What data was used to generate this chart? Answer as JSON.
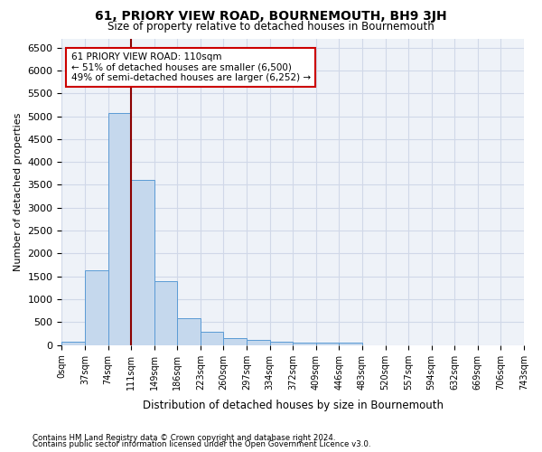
{
  "title": "61, PRIORY VIEW ROAD, BOURNEMOUTH, BH9 3JH",
  "subtitle": "Size of property relative to detached houses in Bournemouth",
  "xlabel": "Distribution of detached houses by size in Bournemouth",
  "ylabel": "Number of detached properties",
  "footnote1": "Contains HM Land Registry data © Crown copyright and database right 2024.",
  "footnote2": "Contains public sector information licensed under the Open Government Licence v3.0.",
  "annotation_line1": "61 PRIORY VIEW ROAD: 110sqm",
  "annotation_line2": "← 51% of detached houses are smaller (6,500)",
  "annotation_line3": "49% of semi-detached houses are larger (6,252) →",
  "bar_color": "#c5d8ed",
  "bar_edge_color": "#5b9bd5",
  "grid_color": "#d0d8e8",
  "vline_color": "#8b0000",
  "background_color": "#eef2f8",
  "bin_labels": [
    "0sqm",
    "37sqm",
    "74sqm",
    "111sqm",
    "149sqm",
    "186sqm",
    "223sqm",
    "260sqm",
    "297sqm",
    "334sqm",
    "372sqm",
    "409sqm",
    "446sqm",
    "483sqm",
    "520sqm",
    "557sqm",
    "594sqm",
    "632sqm",
    "669sqm",
    "706sqm",
    "743sqm"
  ],
  "bar_values": [
    75,
    1625,
    5075,
    3600,
    1400,
    580,
    290,
    150,
    105,
    70,
    55,
    50,
    50,
    0,
    0,
    0,
    0,
    0,
    0,
    0
  ],
  "vline_position": 3,
  "ylim": [
    0,
    6700
  ],
  "yticks": [
    0,
    500,
    1000,
    1500,
    2000,
    2500,
    3000,
    3500,
    4000,
    4500,
    5000,
    5500,
    6000,
    6500
  ]
}
